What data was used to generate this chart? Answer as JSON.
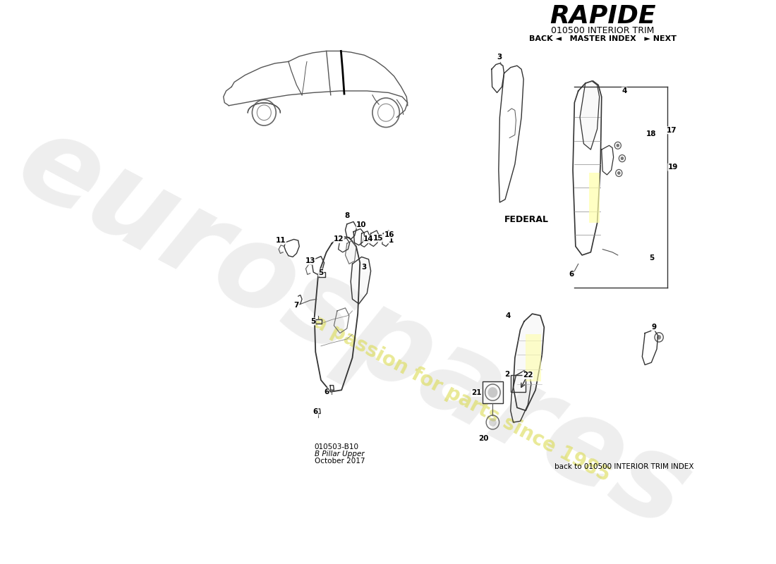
{
  "title": "RAPIDE",
  "subtitle": "010500 INTERIOR TRIM",
  "nav_text": "BACK ◄   MASTER INDEX   ► NEXT",
  "page_code": "010503-B10",
  "page_name": "B Pillar Upper",
  "page_date": "October 2017",
  "footer_text": "back to 010500 INTERIOR TRIM INDEX",
  "federal_label": "FEDERAL",
  "bg_color": "#ffffff",
  "watermark_euro_color": "#d0d0d0",
  "watermark_yellow_color": "#d8d840"
}
